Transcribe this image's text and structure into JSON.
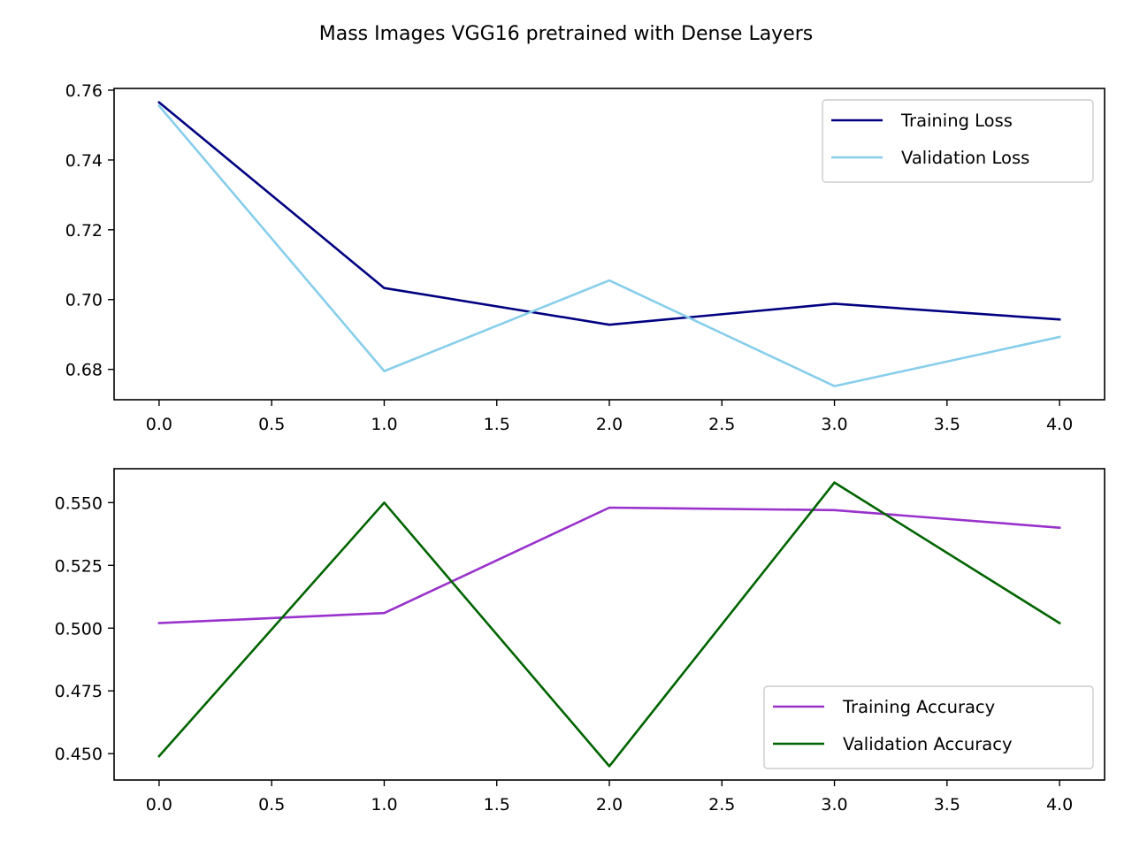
{
  "figure": {
    "title": "Mass Images VGG16 pretrained with Dense Layers"
  },
  "chart_data": [
    {
      "type": "line",
      "x": [
        0,
        1,
        2,
        3,
        4
      ],
      "series": [
        {
          "name": "Training Loss",
          "color": "#000080",
          "values": [
            0.7565,
            0.7033,
            0.6928,
            0.6988,
            0.6943
          ]
        },
        {
          "name": "Validation Loss",
          "color": "#87ceeb",
          "values": [
            0.7555,
            0.6795,
            0.7055,
            0.6752,
            0.6893
          ]
        }
      ],
      "xlim": [
        -0.2,
        4.2
      ],
      "ylim": [
        0.6713,
        0.7605
      ],
      "xticks": [
        0,
        0.5,
        1,
        1.5,
        2,
        2.5,
        3,
        3.5,
        4
      ],
      "xtick_labels": [
        "0.0",
        "0.5",
        "1.0",
        "1.5",
        "2.0",
        "2.5",
        "3.0",
        "3.5",
        "4.0"
      ],
      "yticks": [
        0.68,
        0.7,
        0.72,
        0.74,
        0.76
      ],
      "ytick_labels": [
        "0.68",
        "0.70",
        "0.72",
        "0.74",
        "0.76"
      ],
      "grid": false,
      "legend": "upper-right"
    },
    {
      "type": "line",
      "x": [
        0,
        1,
        2,
        3,
        4
      ],
      "series": [
        {
          "name": "Training Accuracy",
          "color": "#9932cc",
          "values": [
            0.502,
            0.506,
            0.548,
            0.547,
            0.54
          ]
        },
        {
          "name": "Validation Accuracy",
          "color": "#006400",
          "values": [
            0.449,
            0.55,
            0.445,
            0.558,
            0.502
          ]
        }
      ],
      "xlim": [
        -0.2,
        4.2
      ],
      "ylim": [
        0.4395,
        0.5635
      ],
      "xticks": [
        0,
        0.5,
        1,
        1.5,
        2,
        2.5,
        3,
        3.5,
        4
      ],
      "xtick_labels": [
        "0.0",
        "0.5",
        "1.0",
        "1.5",
        "2.0",
        "2.5",
        "3.0",
        "3.5",
        "4.0"
      ],
      "yticks": [
        0.45,
        0.475,
        0.5,
        0.525,
        0.55
      ],
      "ytick_labels": [
        "0.450",
        "0.475",
        "0.500",
        "0.525",
        "0.550"
      ],
      "grid": false,
      "legend": "lower-right"
    }
  ]
}
